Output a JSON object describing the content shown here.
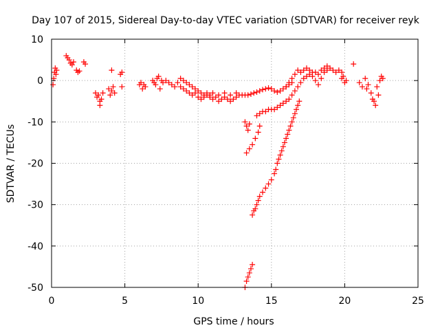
{
  "chart_data": {
    "type": "scatter",
    "title": "Day 107 of 2015, Sidereal Day-to-day VTEC variation (SDTVAR) for receiver reyk",
    "xlabel": "GPS time / hours",
    "ylabel": "SDTVAR / TECUs",
    "xlim": [
      0,
      25
    ],
    "ylim": [
      -50,
      10
    ],
    "xticks": [
      0,
      5,
      10,
      15,
      20,
      25
    ],
    "yticks": [
      -50,
      -40,
      -30,
      -20,
      -10,
      0,
      10
    ],
    "grid": true,
    "marker": "+",
    "series": [
      {
        "name": "reyk",
        "color": "#ff0000",
        "points": [
          [
            0.1,
            -1.0
          ],
          [
            0.15,
            0.5
          ],
          [
            0.2,
            2.0
          ],
          [
            0.25,
            3.0
          ],
          [
            0.3,
            1.5
          ],
          [
            0.35,
            2.5
          ],
          [
            1.0,
            6.0
          ],
          [
            1.1,
            5.5
          ],
          [
            1.2,
            5.0
          ],
          [
            1.3,
            4.2
          ],
          [
            1.4,
            3.8
          ],
          [
            1.5,
            4.5
          ],
          [
            1.7,
            2.5
          ],
          [
            1.8,
            2.0
          ],
          [
            1.9,
            2.3
          ],
          [
            2.2,
            4.5
          ],
          [
            2.3,
            4.0
          ],
          [
            3.0,
            -3.0
          ],
          [
            3.1,
            -4.0
          ],
          [
            3.2,
            -3.5
          ],
          [
            3.3,
            -5.0
          ],
          [
            3.4,
            -4.5
          ],
          [
            3.5,
            -3.0
          ],
          [
            3.3,
            -6.0
          ],
          [
            3.9,
            -2.0
          ],
          [
            4.0,
            -3.5
          ],
          [
            4.1,
            -2.5
          ],
          [
            4.2,
            -1.5
          ],
          [
            4.1,
            2.5
          ],
          [
            4.3,
            -3.0
          ],
          [
            4.7,
            1.5
          ],
          [
            4.8,
            2.0
          ],
          [
            4.8,
            -1.5
          ],
          [
            6.0,
            -1.0
          ],
          [
            6.1,
            -0.5
          ],
          [
            6.2,
            -2.0
          ],
          [
            6.3,
            -1.0
          ],
          [
            6.4,
            -1.5
          ],
          [
            6.9,
            0.0
          ],
          [
            7.0,
            -0.5
          ],
          [
            7.1,
            -1.0
          ],
          [
            7.2,
            0.5
          ],
          [
            7.3,
            1.0
          ],
          [
            7.4,
            -2.0
          ],
          [
            7.5,
            0.0
          ],
          [
            7.6,
            -0.5
          ],
          [
            7.8,
            0.0
          ],
          [
            8.0,
            -0.5
          ],
          [
            8.2,
            -1.0
          ],
          [
            8.4,
            -1.5
          ],
          [
            8.6,
            -0.5
          ],
          [
            8.8,
            -1.5
          ],
          [
            9.0,
            -2.0
          ],
          [
            9.2,
            -2.5
          ],
          [
            9.4,
            -3.0
          ],
          [
            9.6,
            -3.5
          ],
          [
            9.8,
            -3.0
          ],
          [
            10.0,
            -4.0
          ],
          [
            10.2,
            -4.5
          ],
          [
            10.4,
            -4.0
          ],
          [
            10.6,
            -3.5
          ],
          [
            10.8,
            -4.0
          ],
          [
            11.0,
            -4.5
          ],
          [
            11.2,
            -4.0
          ],
          [
            11.4,
            -5.0
          ],
          [
            11.6,
            -4.5
          ],
          [
            11.8,
            -4.0
          ],
          [
            12.0,
            -4.5
          ],
          [
            12.2,
            -5.0
          ],
          [
            12.4,
            -4.5
          ],
          [
            12.6,
            -4.0
          ],
          [
            12.8,
            -3.5
          ],
          [
            13.0,
            -3.5
          ],
          [
            13.2,
            -3.5
          ],
          [
            8.8,
            0.5
          ],
          [
            9.0,
            0.0
          ],
          [
            9.2,
            -0.5
          ],
          [
            9.4,
            -1.0
          ],
          [
            9.6,
            -1.5
          ],
          [
            9.8,
            -2.0
          ],
          [
            10.0,
            -2.5
          ],
          [
            10.2,
            -3.0
          ],
          [
            10.4,
            -3.5
          ],
          [
            10.6,
            -3.0
          ],
          [
            10.8,
            -3.5
          ],
          [
            11.0,
            -3.0
          ],
          [
            11.4,
            -3.5
          ],
          [
            11.8,
            -3.0
          ],
          [
            12.2,
            -3.5
          ],
          [
            12.6,
            -3.0
          ],
          [
            13.2,
            -10.0
          ],
          [
            13.3,
            -11.0
          ],
          [
            13.4,
            -12.0
          ],
          [
            13.5,
            -10.5
          ],
          [
            13.3,
            -17.5
          ],
          [
            13.5,
            -16.5
          ],
          [
            13.7,
            -15.5
          ],
          [
            13.9,
            -14.0
          ],
          [
            14.1,
            -12.5
          ],
          [
            14.2,
            -11.0
          ],
          [
            13.4,
            -3.5
          ],
          [
            13.6,
            -3.3
          ],
          [
            13.8,
            -3.0
          ],
          [
            14.0,
            -2.8
          ],
          [
            14.2,
            -2.5
          ],
          [
            14.4,
            -2.2
          ],
          [
            14.6,
            -2.0
          ],
          [
            14.8,
            -1.8
          ],
          [
            15.0,
            -2.0
          ],
          [
            15.2,
            -2.5
          ],
          [
            15.4,
            -2.8
          ],
          [
            15.6,
            -2.5
          ],
          [
            15.8,
            -2.0
          ],
          [
            16.0,
            -1.5
          ],
          [
            16.2,
            -1.0
          ],
          [
            16.4,
            -0.5
          ],
          [
            14.0,
            -8.5
          ],
          [
            14.2,
            -8.0
          ],
          [
            14.4,
            -7.5
          ],
          [
            14.6,
            -7.5
          ],
          [
            14.8,
            -7.0
          ],
          [
            15.0,
            -7.0
          ],
          [
            15.2,
            -7.0
          ],
          [
            15.4,
            -6.5
          ],
          [
            15.6,
            -6.0
          ],
          [
            15.8,
            -5.5
          ],
          [
            16.0,
            -5.0
          ],
          [
            16.2,
            -4.5
          ],
          [
            16.4,
            -3.5
          ],
          [
            16.6,
            -2.5
          ],
          [
            16.8,
            -1.5
          ],
          [
            17.0,
            -0.5
          ],
          [
            17.2,
            0.5
          ],
          [
            17.4,
            1.0
          ],
          [
            17.6,
            1.5
          ],
          [
            17.8,
            2.0
          ],
          [
            18.0,
            2.0
          ],
          [
            18.2,
            1.5
          ],
          [
            18.4,
            2.5
          ],
          [
            18.6,
            3.0
          ],
          [
            18.8,
            3.5
          ],
          [
            19.0,
            3.0
          ],
          [
            19.2,
            2.5
          ],
          [
            19.4,
            2.0
          ],
          [
            19.6,
            2.5
          ],
          [
            19.8,
            2.0
          ],
          [
            16.0,
            -1.5
          ],
          [
            16.2,
            -0.5
          ],
          [
            16.4,
            0.5
          ],
          [
            16.6,
            1.5
          ],
          [
            16.8,
            2.5
          ],
          [
            17.0,
            2.0
          ],
          [
            17.2,
            2.5
          ],
          [
            17.4,
            3.0
          ],
          [
            17.6,
            2.5
          ],
          [
            17.8,
            1.0
          ],
          [
            18.0,
            0.0
          ],
          [
            18.2,
            -1.0
          ],
          [
            18.4,
            0.5
          ],
          [
            18.6,
            2.0
          ],
          [
            18.8,
            2.5
          ],
          [
            19.8,
            0.5
          ],
          [
            19.9,
            1.0
          ],
          [
            20.0,
            -0.5
          ],
          [
            20.1,
            0.0
          ],
          [
            20.6,
            4.0
          ],
          [
            21.0,
            -0.5
          ],
          [
            21.2,
            -1.5
          ],
          [
            21.4,
            0.5
          ],
          [
            21.5,
            -2.0
          ],
          [
            21.6,
            -1.0
          ],
          [
            21.8,
            -3.0
          ],
          [
            21.9,
            -4.5
          ],
          [
            22.0,
            -5.0
          ],
          [
            22.1,
            -6.0
          ],
          [
            22.2,
            -1.5
          ],
          [
            22.3,
            -3.5
          ],
          [
            22.4,
            0.0
          ],
          [
            22.5,
            1.0
          ],
          [
            22.6,
            0.5
          ],
          [
            13.2,
            -50.0
          ],
          [
            13.3,
            -48.5
          ],
          [
            13.4,
            -47.5
          ],
          [
            13.5,
            -46.5
          ],
          [
            13.6,
            -45.5
          ],
          [
            13.7,
            -44.5
          ],
          [
            13.7,
            -32.5
          ],
          [
            13.8,
            -31.5
          ],
          [
            13.9,
            -31.0
          ],
          [
            14.0,
            -30.0
          ],
          [
            14.1,
            -29.0
          ],
          [
            14.2,
            -28.0
          ],
          [
            14.4,
            -27.0
          ],
          [
            14.6,
            -26.0
          ],
          [
            14.8,
            -25.0
          ],
          [
            15.0,
            -24.0
          ],
          [
            15.2,
            -22.5
          ],
          [
            15.3,
            -21.5
          ],
          [
            15.4,
            -20.0
          ],
          [
            15.5,
            -19.0
          ],
          [
            15.6,
            -18.0
          ],
          [
            15.7,
            -17.0
          ],
          [
            15.8,
            -16.0
          ],
          [
            15.9,
            -15.0
          ],
          [
            16.0,
            -14.0
          ],
          [
            16.1,
            -13.0
          ],
          [
            16.2,
            -12.0
          ],
          [
            16.3,
            -11.0
          ],
          [
            16.4,
            -10.0
          ],
          [
            16.5,
            -9.0
          ],
          [
            16.6,
            -8.0
          ],
          [
            16.7,
            -7.0
          ],
          [
            16.8,
            -6.0
          ],
          [
            16.9,
            -5.0
          ]
        ]
      }
    ]
  }
}
